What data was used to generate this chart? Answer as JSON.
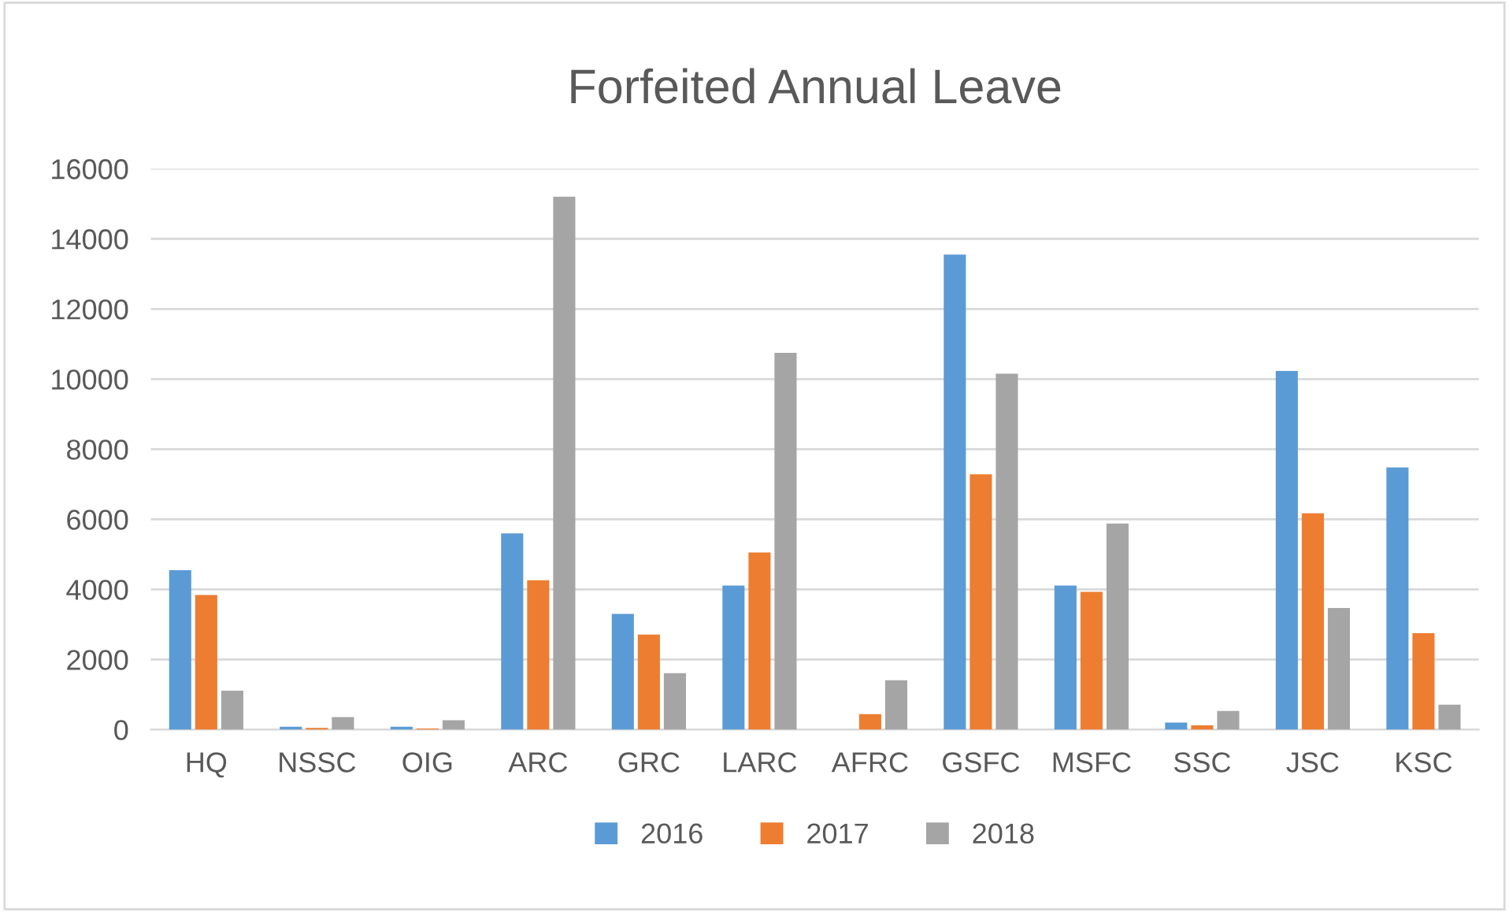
{
  "chart_data": {
    "type": "bar",
    "title": "Forfeited Annual Leave",
    "categories": [
      "HQ",
      "NSSC",
      "OIG",
      "ARC",
      "GRC",
      "LARC",
      "AFRC",
      "GSFC",
      "MSFC",
      "SSC",
      "JSC",
      "KSC"
    ],
    "series": [
      {
        "name": "2016",
        "color": "#5b9bd5",
        "values": [
          4550,
          80,
          80,
          5600,
          3300,
          4110,
          0,
          13550,
          4110,
          200,
          10230,
          7480
        ]
      },
      {
        "name": "2017",
        "color": "#ed7d31",
        "values": [
          3840,
          50,
          30,
          4260,
          2710,
          5050,
          440,
          7280,
          3930,
          120,
          6170,
          2750
        ]
      },
      {
        "name": "2018",
        "color": "#a5a5a5",
        "values": [
          1110,
          360,
          270,
          15200,
          1610,
          10750,
          1410,
          10150,
          5880,
          530,
          3470,
          710
        ]
      }
    ],
    "ylim": [
      0,
      16000
    ],
    "yticks": [
      0,
      2000,
      4000,
      6000,
      8000,
      10000,
      12000,
      14000,
      16000
    ],
    "grid": "y",
    "legend": "bottom"
  }
}
